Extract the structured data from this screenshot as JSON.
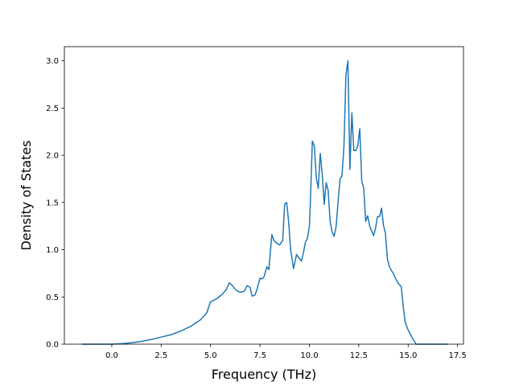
{
  "chart_data": {
    "type": "line",
    "title": "",
    "xlabel": "Frequency (THz)",
    "ylabel": "Density of States",
    "xlim": [
      -2.4,
      17.8
    ],
    "ylim": [
      0.0,
      3.15
    ],
    "grid": false,
    "legend": "none",
    "line_color": "#1f77b4",
    "xticks": [
      {
        "value": 0.0,
        "label": "0.0"
      },
      {
        "value": 2.5,
        "label": "2.5"
      },
      {
        "value": 5.0,
        "label": "5.0"
      },
      {
        "value": 7.5,
        "label": "7.5"
      },
      {
        "value": 10.0,
        "label": "10.0"
      },
      {
        "value": 12.5,
        "label": "12.5"
      },
      {
        "value": 15.0,
        "label": "15.0"
      },
      {
        "value": 17.5,
        "label": "17.5"
      }
    ],
    "yticks": [
      {
        "value": 0.0,
        "label": "0.0"
      },
      {
        "value": 0.5,
        "label": "0.5"
      },
      {
        "value": 1.0,
        "label": "1.0"
      },
      {
        "value": 1.5,
        "label": "1.5"
      },
      {
        "value": 2.0,
        "label": "2.0"
      },
      {
        "value": 2.5,
        "label": "2.5"
      },
      {
        "value": 3.0,
        "label": "3.0"
      }
    ],
    "series": [
      {
        "x": [
          -1.5,
          -1.0,
          -0.5,
          0.0,
          0.5,
          1.0,
          1.5,
          2.0,
          2.5,
          3.0,
          3.5,
          4.0,
          4.5,
          4.8,
          5.0,
          5.3,
          5.6,
          5.8,
          5.95,
          6.1,
          6.3,
          6.5,
          6.7,
          6.85,
          7.0,
          7.1,
          7.25,
          7.35,
          7.5,
          7.6,
          7.7,
          7.85,
          7.95,
          8.1,
          8.2,
          8.35,
          8.5,
          8.65,
          8.75,
          8.85,
          8.95,
          9.05,
          9.2,
          9.35,
          9.45,
          9.6,
          9.7,
          9.8,
          9.9,
          10.0,
          10.05,
          10.15,
          10.25,
          10.35,
          10.45,
          10.55,
          10.65,
          10.75,
          10.85,
          10.95,
          11.05,
          11.15,
          11.25,
          11.35,
          11.45,
          11.55,
          11.65,
          11.75,
          11.85,
          11.95,
          12.05,
          12.15,
          12.25,
          12.35,
          12.45,
          12.55,
          12.65,
          12.75,
          12.85,
          12.95,
          13.05,
          13.15,
          13.25,
          13.35,
          13.45,
          13.55,
          13.65,
          13.75,
          13.85,
          13.95,
          14.05,
          14.15,
          14.25,
          14.35,
          14.45,
          14.55,
          14.65,
          14.75,
          14.85,
          15.0,
          15.2,
          15.4,
          15.55,
          16.0,
          16.5,
          17.0
        ],
        "y": [
          0.0,
          0.0,
          0.0,
          0.0,
          0.005,
          0.015,
          0.03,
          0.05,
          0.075,
          0.1,
          0.14,
          0.19,
          0.26,
          0.33,
          0.45,
          0.48,
          0.53,
          0.58,
          0.65,
          0.62,
          0.57,
          0.55,
          0.56,
          0.62,
          0.6,
          0.51,
          0.52,
          0.58,
          0.7,
          0.69,
          0.71,
          0.82,
          0.79,
          1.16,
          1.1,
          1.07,
          1.05,
          1.1,
          1.48,
          1.5,
          1.3,
          1.0,
          0.8,
          0.95,
          0.92,
          0.88,
          0.97,
          1.08,
          1.12,
          1.25,
          1.5,
          2.15,
          2.1,
          1.76,
          1.65,
          2.02,
          1.8,
          1.48,
          1.71,
          1.63,
          1.3,
          1.19,
          1.14,
          1.24,
          1.5,
          1.75,
          1.78,
          2.1,
          2.85,
          3.0,
          1.85,
          2.45,
          2.05,
          2.05,
          2.1,
          2.28,
          1.73,
          1.65,
          1.3,
          1.36,
          1.25,
          1.2,
          1.15,
          1.23,
          1.35,
          1.35,
          1.44,
          1.26,
          1.17,
          0.9,
          0.82,
          0.78,
          0.75,
          0.7,
          0.66,
          0.63,
          0.61,
          0.4,
          0.23,
          0.15,
          0.07,
          0.0,
          0.0,
          0.0,
          0.0,
          0.0
        ]
      }
    ]
  }
}
